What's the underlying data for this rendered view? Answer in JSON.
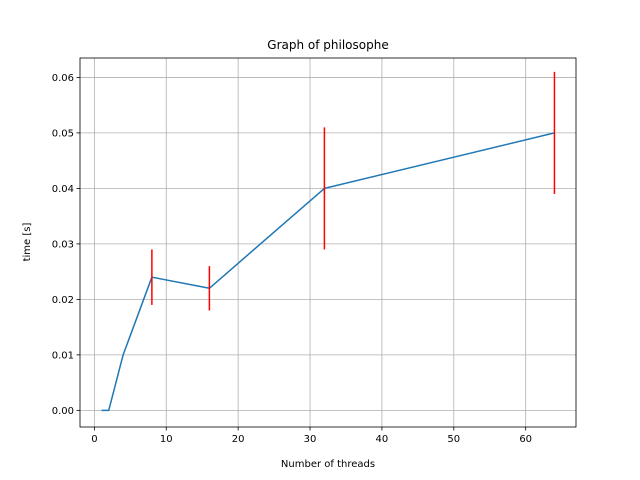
{
  "chart_data": {
    "type": "line",
    "title": "Graph of philosophe",
    "xlabel": "Number of threads",
    "ylabel": "time [s]",
    "xlim": [
      -2,
      67
    ],
    "ylim": [
      -0.003,
      0.0635
    ],
    "xticks": [
      0,
      10,
      20,
      30,
      40,
      50,
      60
    ],
    "yticks": [
      0.0,
      0.01,
      0.02,
      0.03,
      0.04,
      0.05,
      0.06
    ],
    "ytick_labels": [
      "0.00",
      "0.01",
      "0.02",
      "0.03",
      "0.04",
      "0.05",
      "0.06"
    ],
    "grid": true,
    "series": [
      {
        "x": [
          1,
          2,
          4,
          8,
          16,
          32,
          64
        ],
        "y": [
          0.0,
          0.0,
          0.01,
          0.024,
          0.022,
          0.04,
          0.05
        ],
        "color": "#1f77b4"
      }
    ],
    "error_bars": {
      "color": "#ff0000",
      "x": [
        8,
        16,
        32,
        64
      ],
      "low": [
        0.019,
        0.018,
        0.029,
        0.039
      ],
      "high": [
        0.029,
        0.026,
        0.051,
        0.061
      ]
    }
  }
}
